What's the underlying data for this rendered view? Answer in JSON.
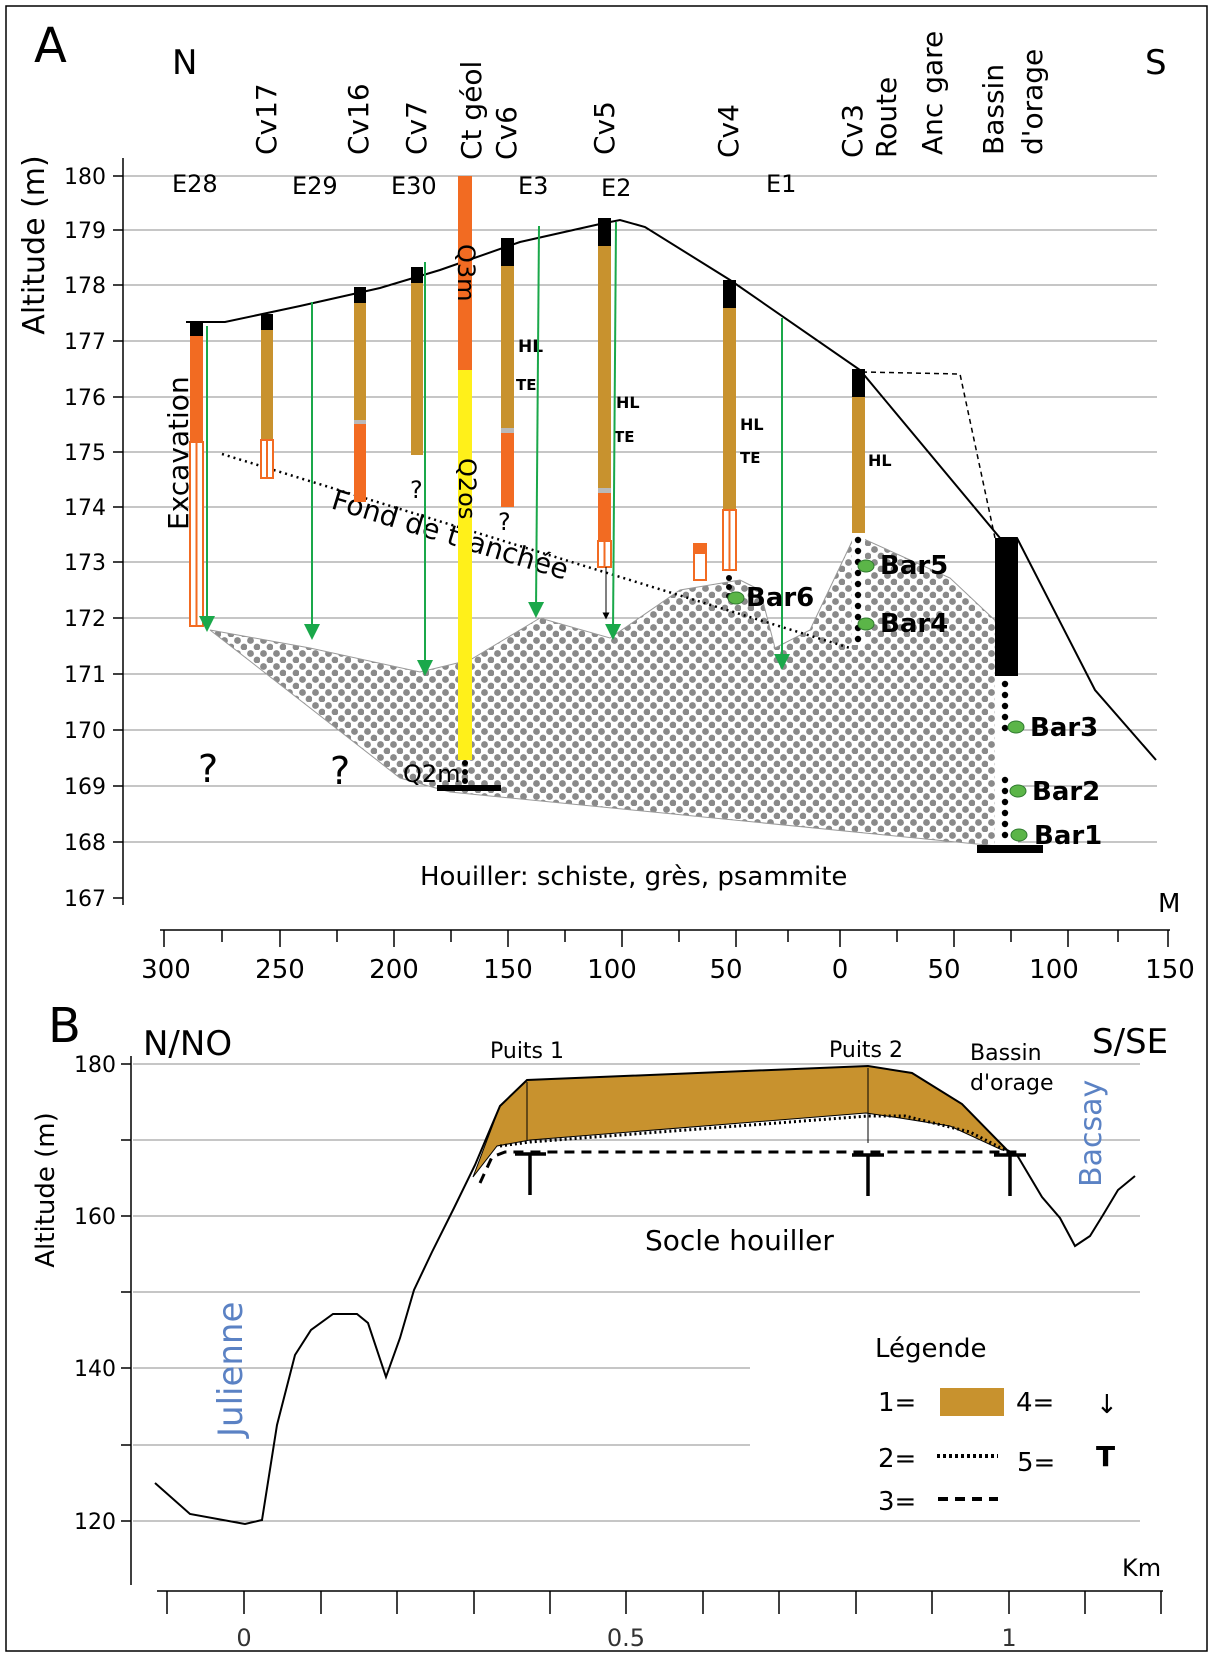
{
  "panelA": {
    "letter": "A",
    "north": "N",
    "south": "S",
    "y_axis_label": "Altitude (m)",
    "y_ticks": [
      "180",
      "179",
      "178",
      "177",
      "176",
      "175",
      "174",
      "173",
      "172",
      "171",
      "170",
      "169",
      "168",
      "167"
    ],
    "x_ticks": [
      "300",
      "250",
      "200",
      "150",
      "100",
      "50",
      "0",
      "50",
      "100",
      "150"
    ],
    "x_unit": "M",
    "vertical_labels": [
      "Cv17",
      "Cv16",
      "Cv7",
      "Ct géol",
      "Cv6",
      "Cv5",
      "Cv4",
      "Cv3",
      "Route",
      "Anc gare",
      "Bassin",
      "d'orage"
    ],
    "e_labels": [
      "E28",
      "E29",
      "E30",
      "E3",
      "E2",
      "E1"
    ],
    "excavation": "Excavation",
    "q3m": "Q3m",
    "q2os": "Q2os",
    "q2m": "Q2m",
    "trench": "Fond de tranchée",
    "houiller": "Houiller: schiste, grès, psammite",
    "bars": [
      "Bar1",
      "Bar2",
      "Bar3",
      "Bar4",
      "Bar5",
      "Bar6"
    ],
    "hl": "HL",
    "te": "TE",
    "question": "?"
  },
  "panelB": {
    "letter": "B",
    "north": "N/NO",
    "south": "S/SE",
    "y_axis_label": "Altitude (m)",
    "y_ticks": [
      "180",
      "160",
      "140",
      "120"
    ],
    "x_ticks": [
      "0",
      "0.5",
      "1"
    ],
    "x_unit": "Km",
    "puits1": "Puits 1",
    "puits2": "Puits 2",
    "bassin1": "Bassin",
    "bassin2": "d'orage",
    "bacsay": "Bacsay",
    "julienne": "Julienne",
    "socle": "Socle houiller",
    "legend_title": "Légende",
    "legend_1": "1=",
    "legend_2": "2=",
    "legend_3": "3=",
    "legend_4": "4=",
    "legend_5": "5=",
    "legend_5_symbol": "T",
    "legend_4_symbol": "↓"
  },
  "colors": {
    "drill_brown": "#C8922E",
    "drill_orange": "#F26B22",
    "yellow": "#FFF01A",
    "green": "#1AA84A",
    "bar_green": "#5BB548",
    "blue_label": "#5B82C4"
  },
  "chart_data": {
    "type": "cross-section",
    "panelA_surface_profile": [
      {
        "x_m": 286,
        "alt": 177.3
      },
      {
        "x_m": 270,
        "alt": 177.3
      },
      {
        "x_m": 200,
        "alt": 178.3
      },
      {
        "x_m": 130,
        "alt": 179.1
      },
      {
        "x_m": 100,
        "alt": 179.2
      },
      {
        "x_m": 0,
        "alt": 176.5
      },
      {
        "x_m": 70,
        "alt": 173.5
      },
      {
        "x_m": 150,
        "alt": 169.5
      }
    ],
    "panelB_profile_km": [
      {
        "km": -0.11,
        "alt": 125
      },
      {
        "km": 0,
        "alt": 119
      },
      {
        "km": 0.3,
        "alt": 165
      },
      {
        "km": 0.37,
        "alt": 178
      },
      {
        "km": 0.82,
        "alt": 180
      },
      {
        "km": 1.0,
        "alt": 168
      },
      {
        "km": 1.1,
        "alt": 156
      },
      {
        "km": 1.16,
        "alt": 165
      }
    ]
  }
}
